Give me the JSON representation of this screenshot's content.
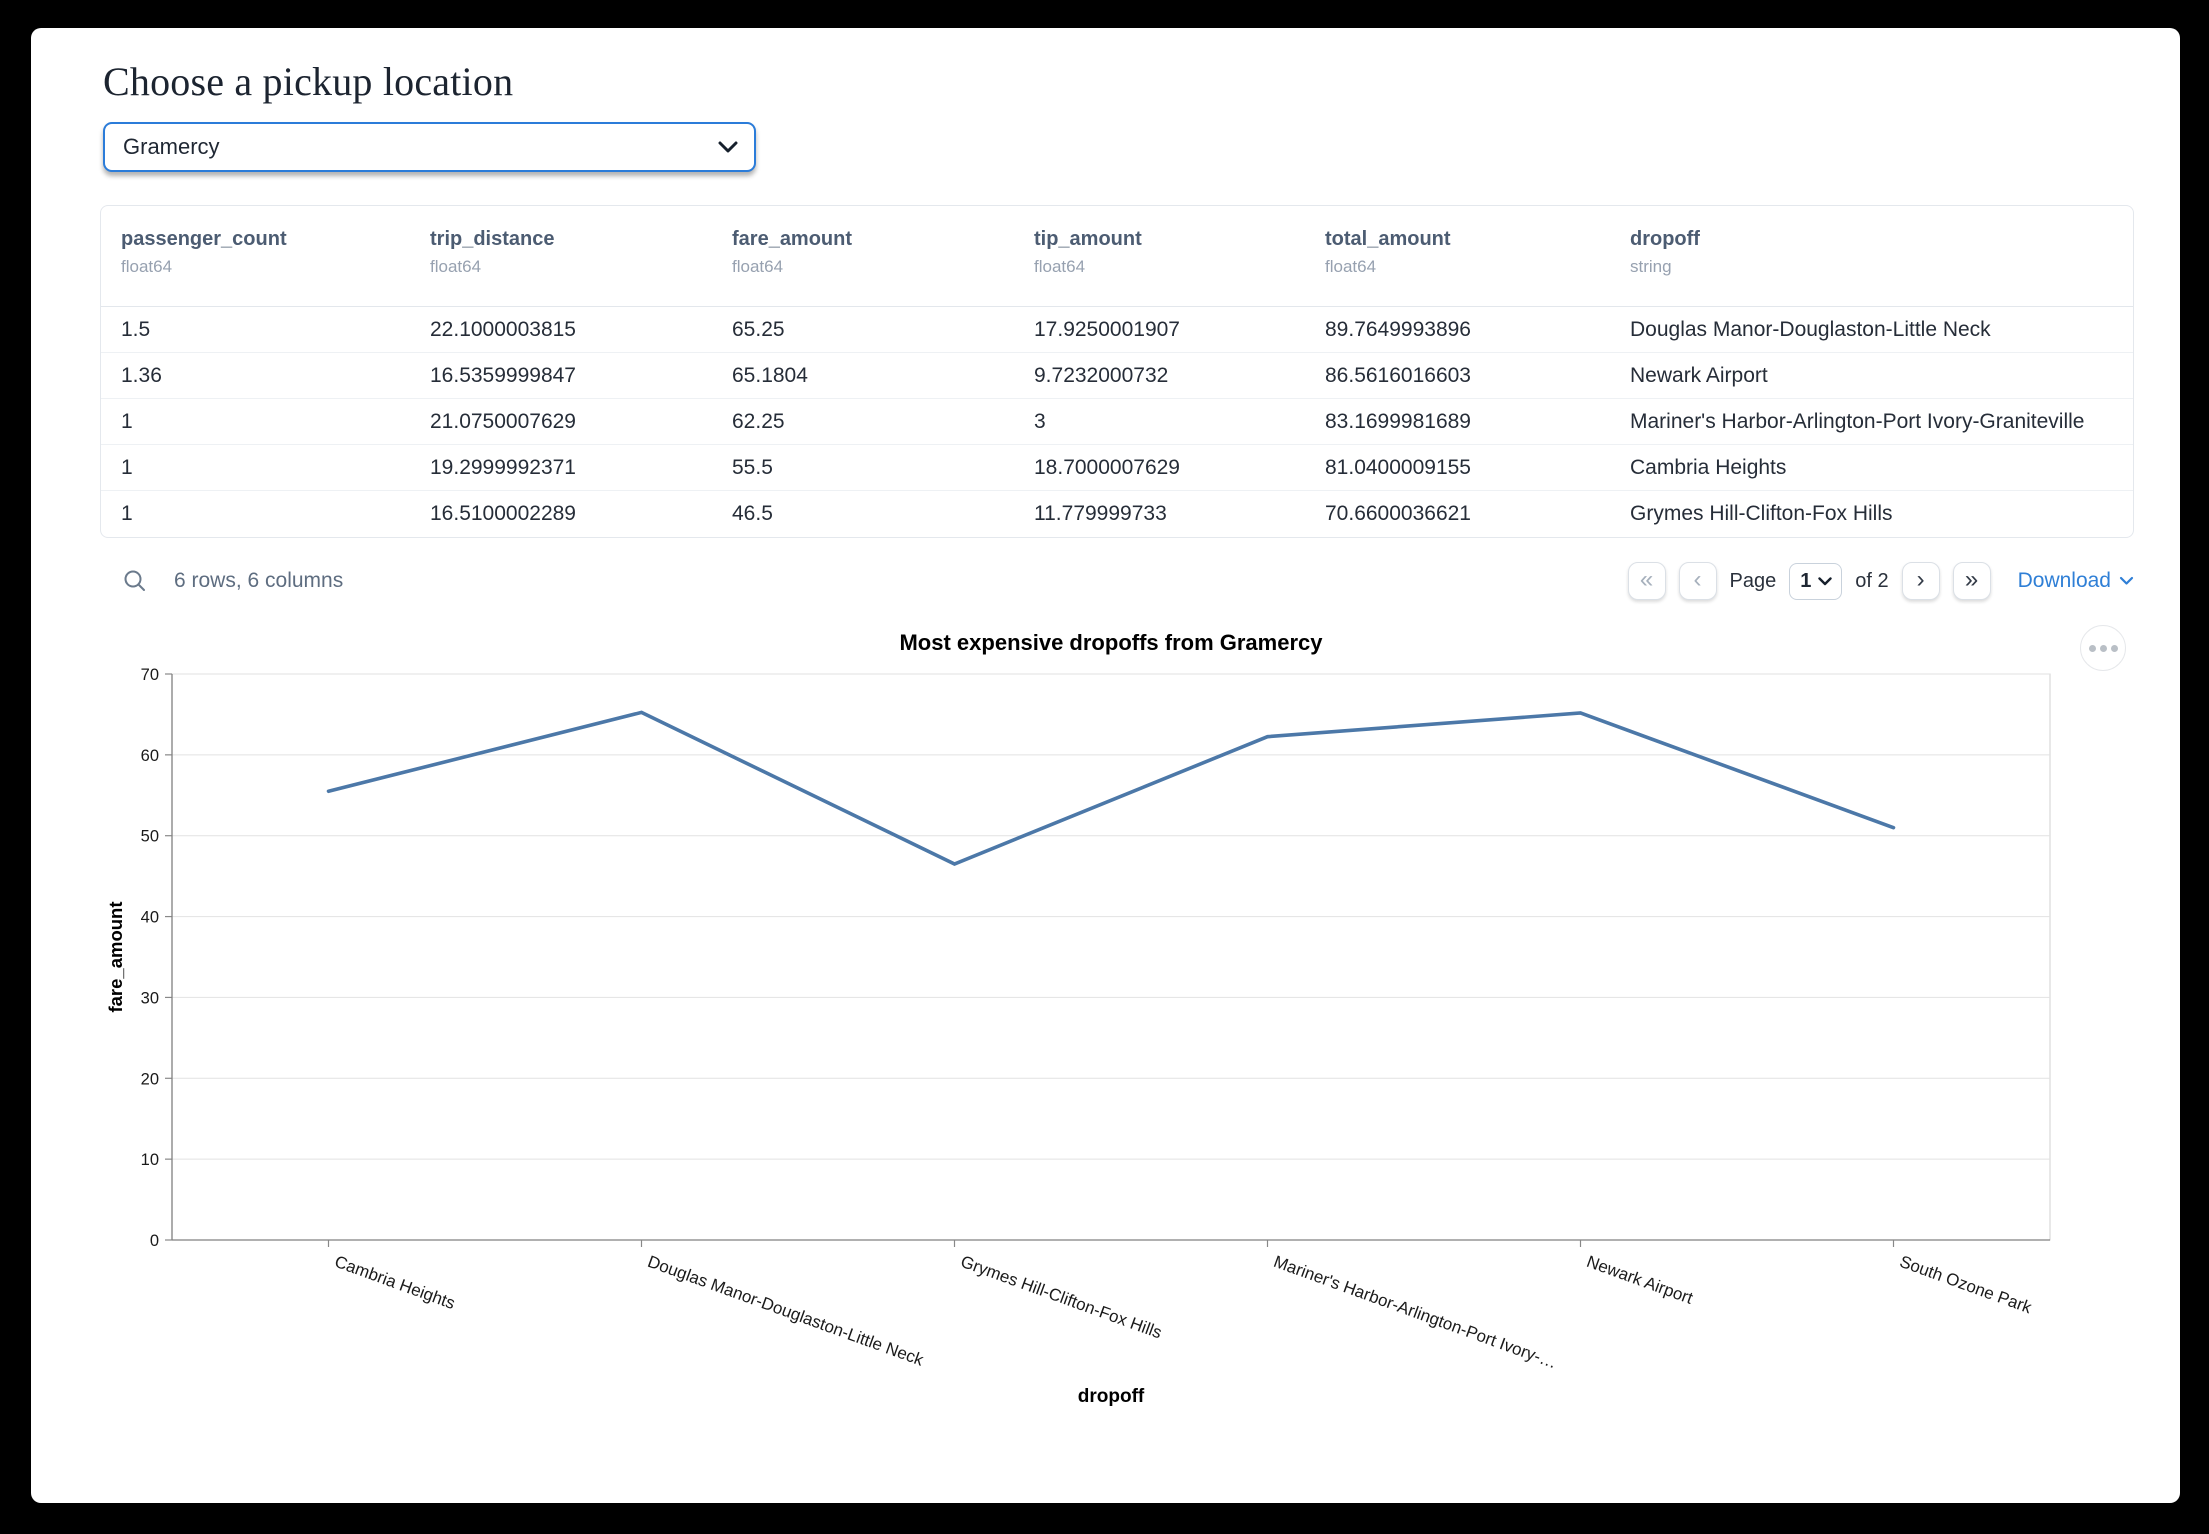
{
  "page": {
    "title": "Choose a pickup location"
  },
  "pickup_select": {
    "value": "Gramercy"
  },
  "table": {
    "columns": [
      {
        "name": "passenger_count",
        "type": "float64"
      },
      {
        "name": "trip_distance",
        "type": "float64"
      },
      {
        "name": "fare_amount",
        "type": "float64"
      },
      {
        "name": "tip_amount",
        "type": "float64"
      },
      {
        "name": "total_amount",
        "type": "float64"
      },
      {
        "name": "dropoff",
        "type": "string"
      }
    ],
    "rows": [
      [
        "1.5",
        "22.1000003815",
        "65.25",
        "17.9250001907",
        "89.7649993896",
        "Douglas Manor-Douglaston-Little Neck"
      ],
      [
        "1.36",
        "16.5359999847",
        "65.1804",
        "9.7232000732",
        "86.5616016603",
        "Newark Airport"
      ],
      [
        "1",
        "21.0750007629",
        "62.25",
        "3",
        "83.1699981689",
        "Mariner's Harbor-Arlington-Port Ivory-Graniteville"
      ],
      [
        "1",
        "19.2999992371",
        "55.5",
        "18.7000007629",
        "81.0400009155",
        "Cambria Heights"
      ],
      [
        "1",
        "16.5100002289",
        "46.5",
        "11.779999733",
        "70.6600036621",
        "Grymes Hill-Clifton-Fox Hills"
      ]
    ],
    "footer": {
      "summary": "6 rows, 6 columns",
      "page_label": "Page",
      "current_page": "1",
      "total_label": "of 2",
      "first_icon": "«",
      "prev_icon": "‹",
      "next_icon": "›",
      "last_icon": "»",
      "download_label": "Download"
    }
  },
  "chart_data": {
    "type": "line",
    "title": "Most expensive dropoffs from Gramercy",
    "xlabel": "dropoff",
    "ylabel": "fare_amount",
    "categories": [
      "Cambria Heights",
      "Douglas Manor-Douglaston-Little Neck",
      "Grymes Hill-Clifton-Fox Hills",
      "Mariner's Harbor-Arlington-Port Ivory-Graniteville",
      "Newark Airport",
      "South Ozone Park"
    ],
    "x_tick_labels": [
      "Cambria Heights",
      "Douglas Manor-Douglaston-Little Neck",
      "Grymes Hill-Clifton-Fox Hills",
      "Mariner's Harbor-Arlington-Port Ivory-…",
      "Newark Airport",
      "South Ozone Park"
    ],
    "values": [
      55.5,
      65.25,
      46.5,
      62.25,
      65.1804,
      51
    ],
    "ylim": [
      0,
      70
    ],
    "yticks": [
      0,
      10,
      20,
      30,
      40,
      50,
      60,
      70
    ],
    "grid": true,
    "legend": "none",
    "line_color": "#4c78a8"
  },
  "colors": {
    "accent_blue": "#2b7cd9",
    "link_blue": "#2f7fd6",
    "line_blue": "#4c78a8"
  }
}
